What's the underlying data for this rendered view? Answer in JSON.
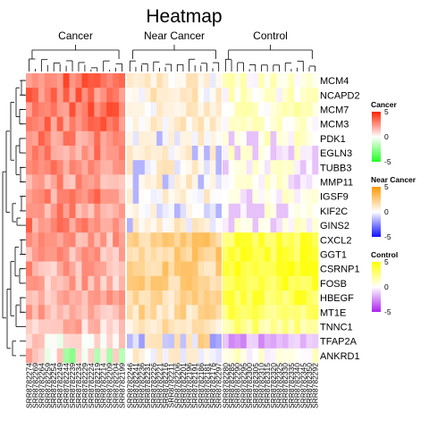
{
  "chart_data": {
    "type": "heatmap",
    "title": "Heatmap",
    "groups": [
      {
        "name": "Cancer",
        "n_samples": 16,
        "legend": {
          "title": "Cancer",
          "low_color": "#22ff22",
          "mid_color": "#ffffff",
          "high_color": "#ff2200",
          "ticks": [
            "5",
            "0",
            "-5"
          ],
          "range": [
            -5,
            5
          ]
        }
      },
      {
        "name": "Near Cancer",
        "n_samples": 16,
        "legend": {
          "title": "Near Cancer",
          "low_color": "#1010ff",
          "mid_color": "#ffffff",
          "high_color": "#ff9900",
          "ticks": [
            "5",
            "0",
            "-5"
          ],
          "range": [
            -5,
            5
          ]
        }
      },
      {
        "name": "Control",
        "n_samples": 16,
        "legend": {
          "title": "Control",
          "low_color": "#aa22ee",
          "mid_color": "#ffffff",
          "high_color": "#ffff00",
          "ticks": [
            "5",
            "0",
            "-5"
          ],
          "range": [
            -5,
            5
          ]
        }
      }
    ],
    "genes": [
      "MCM4",
      "NCAPD2",
      "MCM7",
      "MCM3",
      "PDK1",
      "EGLN3",
      "TUBB3",
      "MMP11",
      "IGSF9",
      "KIF2C",
      "GINS2",
      "CXCL2",
      "GGT1",
      "CSRNP1",
      "FOSB",
      "HBEGF",
      "MT1E",
      "TNNC1",
      "TFAP2A",
      "ANKRD1"
    ],
    "gene_profiles": [
      {
        "gene": "MCM4",
        "cancer": 3.2,
        "near": 0.6,
        "control": 0.8
      },
      {
        "gene": "NCAPD2",
        "cancer": 3.0,
        "near": 0.7,
        "control": 0.7
      },
      {
        "gene": "MCM7",
        "cancer": 3.1,
        "near": 0.8,
        "control": 0.9
      },
      {
        "gene": "MCM3",
        "cancer": 2.9,
        "near": 0.6,
        "control": 0.7
      },
      {
        "gene": "PDK1",
        "cancer": 2.6,
        "near": 0.3,
        "control": 0.5
      },
      {
        "gene": "EGLN3",
        "cancer": 2.4,
        "near": 0.2,
        "control": 0.2
      },
      {
        "gene": "TUBB3",
        "cancer": 2.3,
        "near": 0.4,
        "control": 0.1
      },
      {
        "gene": "MMP11",
        "cancer": 2.2,
        "near": 0.4,
        "control": 0.2
      },
      {
        "gene": "IGSF9",
        "cancer": 2.5,
        "near": 0.3,
        "control": 0.3
      },
      {
        "gene": "KIF2C",
        "cancer": 2.3,
        "near": 0.1,
        "control": 0.2
      },
      {
        "gene": "GINS2",
        "cancer": 2.6,
        "near": 0.4,
        "control": 0.3
      },
      {
        "gene": "CXCL2",
        "cancer": 1.9,
        "near": 2.3,
        "control": 3.5
      },
      {
        "gene": "GGT1",
        "cancer": 2.0,
        "near": 2.2,
        "control": 3.7
      },
      {
        "gene": "CSRNP1",
        "cancer": 1.9,
        "near": 2.1,
        "control": 3.8
      },
      {
        "gene": "FOSB",
        "cancer": 1.7,
        "near": 2.0,
        "control": 3.6
      },
      {
        "gene": "HBEGF",
        "cancer": 1.6,
        "near": 1.8,
        "control": 3.4
      },
      {
        "gene": "MT1E",
        "cancer": 1.6,
        "near": 1.7,
        "control": 3.0
      },
      {
        "gene": "TNNC1",
        "cancer": 1.3,
        "near": 1.2,
        "control": 2.3
      },
      {
        "gene": "TFAP2A",
        "cancer": 0.5,
        "near": 0.2,
        "control": -1.8
      },
      {
        "gene": "ANKRD1",
        "cancer": 0.2,
        "near": 0.4,
        "control": 0.6
      }
    ],
    "samples": [
      "SRR8782274",
      "SRR8782269",
      "SRR8782264",
      "SRR8782259",
      "SRR8782254",
      "SRR8782249",
      "SRR8782244",
      "SRR8782239",
      "SRR8782234",
      "SRR8782229",
      "SRR8782224",
      "SRR8782219",
      "SRR8782214",
      "SRR8782209",
      "SRR8782204",
      "SRR8782199",
      "SRR8782246",
      "SRR8782241",
      "SRR8782236",
      "SRR8782231",
      "SRR8782226",
      "SRR8782221",
      "SRR8782216",
      "SRR8782211",
      "SRR8782206",
      "SRR8782201",
      "SRR8782196",
      "SRR8782191",
      "SRR8782186",
      "SRR8782181",
      "SRR8782176",
      "SRR8782297",
      "SRR8782280",
      "SRR8782285",
      "SRR8782290",
      "SRR8782295",
      "SRR8782300",
      "SRR8782305",
      "SRR8782310",
      "SRR8782315",
      "SRR8782320",
      "SRR8782325",
      "SRR8782330",
      "SRR8782335",
      "SRR8782340",
      "SRR8782345",
      "SRR8782350",
      "SRR8782292"
    ]
  }
}
